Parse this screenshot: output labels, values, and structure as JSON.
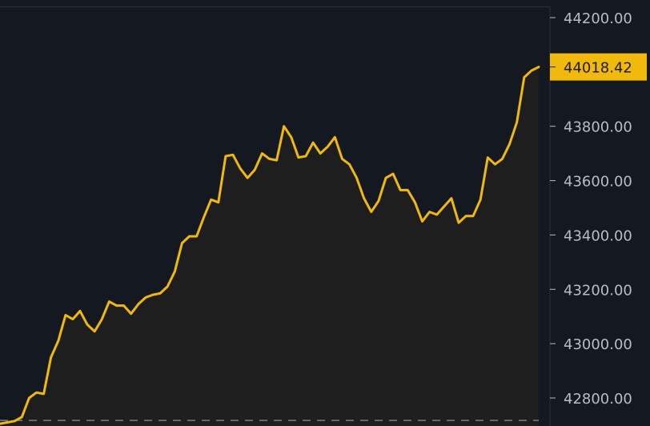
{
  "colors": {
    "background": "#141821",
    "line": "#F0B90B",
    "area_fill": "#1E1E1E",
    "axis_text": "#B7BDC6",
    "axis_line": "#2B3139",
    "price_tag_bg": "#F0B90B",
    "price_tag_text": "#1B1B1B",
    "reference_line": "#7B8089"
  },
  "chart_data": {
    "type": "area",
    "title": "",
    "xlabel": "",
    "ylabel": "",
    "ylim": [
      42700,
      44240
    ],
    "y_ticks": [
      "44200.00",
      "43800.00",
      "43600.00",
      "43400.00",
      "43200.00",
      "43000.00",
      "42800.00"
    ],
    "current_price": "44018.42",
    "reference_level": 42715,
    "grid": false,
    "series": [
      {
        "values": [
          42705,
          42710,
          42715,
          42730,
          42800,
          42820,
          42815,
          42950,
          43010,
          43105,
          43090,
          43120,
          43070,
          43045,
          43090,
          43155,
          43140,
          43140,
          43110,
          43145,
          43170,
          43180,
          43185,
          43210,
          43265,
          43370,
          43395,
          43395,
          43465,
          43530,
          43520,
          43690,
          43695,
          43645,
          43610,
          43640,
          43700,
          43680,
          43675,
          43800,
          43760,
          43685,
          43690,
          43740,
          43700,
          43725,
          43760,
          43680,
          43660,
          43610,
          43535,
          43485,
          43525,
          43610,
          43625,
          43565,
          43565,
          43520,
          43450,
          43485,
          43475,
          43505,
          43535,
          43445,
          43470,
          43470,
          43530,
          43685,
          43660,
          43680,
          43735,
          43815,
          43980,
          44005,
          44018.42
        ]
      }
    ]
  }
}
